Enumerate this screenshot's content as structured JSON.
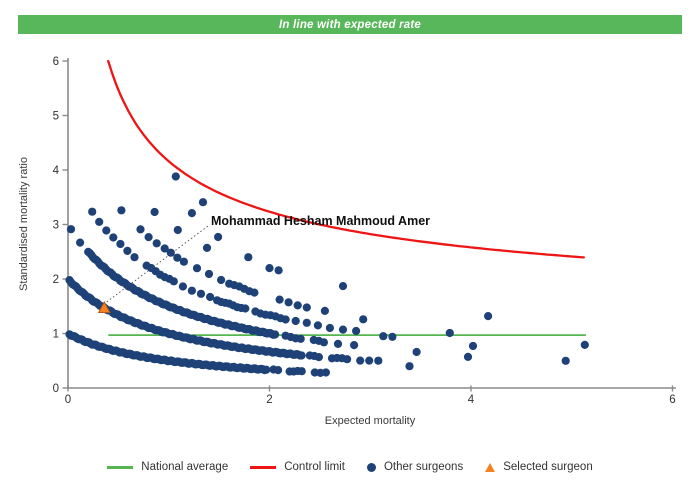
{
  "header": {
    "text": "In line with expected rate",
    "bg_color": "#58b75a"
  },
  "chart_data": {
    "type": "scatter",
    "title": "",
    "xlabel": "Expected mortality",
    "ylabel": "Standardised mortality ratio",
    "xlim": [
      0,
      6
    ],
    "ylim": [
      0,
      6
    ],
    "x_ticks": [
      0,
      2,
      4,
      6
    ],
    "y_ticks": [
      0,
      1,
      2,
      3,
      4,
      5,
      6
    ],
    "grid": false,
    "national_average": {
      "label": "National average",
      "value": 0.97,
      "x_range": [
        0.4,
        5.14
      ],
      "color": "#55b54e"
    },
    "control_limit": {
      "label": "Control limit",
      "formula": "smr = 1 + 3.16/sqrt(expected)",
      "coeff": 3.16,
      "x_range": [
        0.3994,
        5.15
      ],
      "color": "#ee1515"
    },
    "other_surgeons": {
      "label": "Other surgeons",
      "dot_color": "#1e4277",
      "band_curve": "smr = deaths/(1+expected)",
      "bands": [
        {
          "deaths": 1,
          "segments": [
            [
              0.015,
              1.98,
              0.016
            ],
            [
              2.04,
              2.12,
              0.045
            ],
            [
              2.2,
              2.32,
              0.04
            ],
            [
              2.45,
              2.56,
              0.055
            ]
          ]
        },
        {
          "deaths": 2,
          "segments": [
            [
              0.015,
              2.32,
              0.016
            ],
            [
              2.4,
              2.52,
              0.045
            ],
            [
              2.62,
              2.8,
              0.05
            ],
            [
              2.9,
              3.08,
              0.09
            ]
          ]
        },
        {
          "deaths": 3,
          "segments": [
            [
              0.03,
              0.12,
              0.09
            ],
            [
              0.2,
              2.06,
              0.016
            ],
            [
              2.16,
              2.32,
              0.05
            ],
            [
              2.44,
              2.56,
              0.05
            ],
            [
              2.68,
              2.72,
              0.1
            ],
            [
              2.84,
              2.88,
              0.1
            ]
          ]
        },
        {
          "deaths": 4,
          "segments": [
            [
              0.24,
              0.72,
              0.07
            ],
            [
              0.78,
              1.06,
              0.045
            ],
            [
              1.14,
              1.42,
              0.09
            ],
            [
              1.48,
              1.78,
              0.04
            ],
            [
              1.86,
              2.16,
              0.05
            ],
            [
              2.26,
              2.48,
              0.11
            ],
            [
              2.6,
              2.88,
              0.13
            ]
          ]
        },
        {
          "deaths": 5,
          "segments": [
            [
              0.72,
              0.96,
              0.08
            ],
            [
              1.02,
              1.16,
              0.065
            ],
            [
              1.28,
              1.52,
              0.12
            ],
            [
              1.6,
              1.88,
              0.05
            ],
            [
              2.1,
              2.45,
              0.09
            ],
            [
              2.55,
              2.62,
              0.1
            ]
          ]
        }
      ],
      "outlier_points": [
        [
          0.53,
          3.26
        ],
        [
          0.86,
          3.23
        ],
        [
          1.23,
          3.21
        ],
        [
          1.07,
          3.88
        ],
        [
          1.34,
          3.41
        ],
        [
          1.09,
          2.9
        ],
        [
          1.38,
          2.57
        ],
        [
          1.49,
          2.77
        ],
        [
          1.79,
          2.4
        ],
        [
          2.0,
          2.2
        ],
        [
          2.09,
          2.16
        ],
        [
          2.73,
          1.87
        ],
        [
          2.93,
          1.26
        ],
        [
          3.13,
          0.95
        ],
        [
          3.22,
          0.94
        ],
        [
          3.39,
          0.4
        ],
        [
          3.46,
          0.66
        ],
        [
          3.79,
          1.01
        ],
        [
          3.97,
          0.57
        ],
        [
          4.02,
          0.77
        ],
        [
          4.17,
          1.32
        ],
        [
          4.94,
          0.5
        ],
        [
          5.13,
          0.79
        ]
      ]
    },
    "selected_surgeon": {
      "label": "Selected surgeon",
      "name": "Mohammad Hesham Mahmoud Amer",
      "x": 0.36,
      "y": 1.47,
      "marker": "triangle",
      "color": "#f5821f"
    },
    "legend_position": "bottom"
  },
  "legend": {
    "items": [
      {
        "label": "National average",
        "type": "line",
        "color": "#55b54e"
      },
      {
        "label": "Control limit",
        "type": "line",
        "color": "#ee1515"
      },
      {
        "label": "Other surgeons",
        "type": "dot",
        "color": "#1e4277"
      },
      {
        "label": "Selected surgeon",
        "type": "triangle",
        "color": "#f5821f"
      }
    ]
  }
}
